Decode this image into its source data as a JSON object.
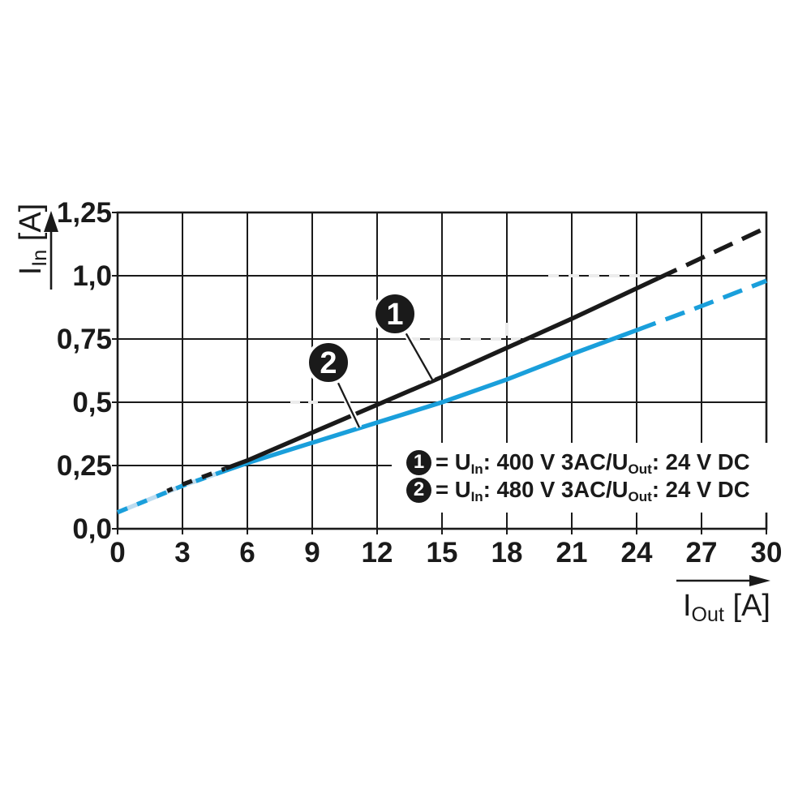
{
  "figure": {
    "background": "#ffffff",
    "colors": {
      "line_black": "#1a1a1a",
      "line_blue": "#1a9fdb",
      "pale_blue_gap": "#bcdcf0",
      "grid": "#1a1a1a",
      "artifact_gap": "#ececec",
      "callout_fill": "#1a1a1a",
      "callout_text": "#ffffff"
    }
  },
  "chart_data": {
    "type": "line",
    "title": "",
    "xlabel": "I_Out [A]",
    "ylabel": "I_In [A]",
    "xlabel_parts": {
      "main": "I",
      "sub": "Out",
      "unit": " [A]"
    },
    "ylabel_parts": {
      "main": "I",
      "sub": "In",
      "unit": " [A]"
    },
    "xlim": [
      0,
      30
    ],
    "ylim": [
      0,
      1.25
    ],
    "grid": true,
    "legend_position": "inside-bottom-right",
    "x_tick_values": [
      0,
      3,
      6,
      9,
      12,
      15,
      18,
      21,
      24,
      27,
      30
    ],
    "x_tick_labels": [
      "0",
      "3",
      "6",
      "9",
      "12",
      "15",
      "18",
      "21",
      "24",
      "27",
      "30"
    ],
    "y_tick_values": [
      1.25,
      1.0,
      0.75,
      0.5,
      0.25,
      0.0
    ],
    "y_tick_labels": [
      "1,25",
      "1,0",
      "0,75",
      "0,5",
      "0,25",
      "0,0"
    ],
    "series": [
      {
        "marker": "1",
        "color": "#1a1a1a",
        "label": "= U_In: 400 V 3AC/U_Out: 24 V DC",
        "label_parts": [
          [
            "t",
            "= U"
          ],
          [
            "s",
            "In"
          ],
          [
            "t",
            ": 400 V 3AC/U"
          ],
          [
            "s",
            "Out"
          ],
          [
            "t",
            ": 24 V DC"
          ]
        ],
        "points": [
          [
            0,
            0.065
          ],
          [
            3,
            0.175
          ],
          [
            6,
            0.27
          ],
          [
            9,
            0.38
          ],
          [
            12,
            0.49
          ],
          [
            15,
            0.6
          ],
          [
            18,
            0.715
          ],
          [
            21,
            0.83
          ],
          [
            24,
            0.95
          ],
          [
            27,
            1.07
          ],
          [
            30,
            1.19
          ]
        ],
        "coincident_until_x": 5,
        "dashed_after_x": 25
      },
      {
        "marker": "2",
        "color": "#1a9fdb",
        "label": "= U_In: 480 V 3AC/U_Out: 24 V DC",
        "label_parts": [
          [
            "t",
            "= U"
          ],
          [
            "s",
            "In"
          ],
          [
            "t",
            ": 480 V 3AC/U"
          ],
          [
            "s",
            "Out"
          ],
          [
            "t",
            ": 24 V DC"
          ]
        ],
        "points": [
          [
            0,
            0.065
          ],
          [
            3,
            0.17
          ],
          [
            6,
            0.26
          ],
          [
            9,
            0.34
          ],
          [
            12,
            0.42
          ],
          [
            15,
            0.5
          ],
          [
            18,
            0.59
          ],
          [
            21,
            0.69
          ],
          [
            24,
            0.785
          ],
          [
            27,
            0.88
          ],
          [
            30,
            0.98
          ]
        ],
        "coincident_until_x": 5,
        "dashed_after_x": 24
      }
    ],
    "callouts": [
      {
        "label": "1",
        "series_index": 0
      },
      {
        "label": "2",
        "series_index": 1
      }
    ]
  }
}
